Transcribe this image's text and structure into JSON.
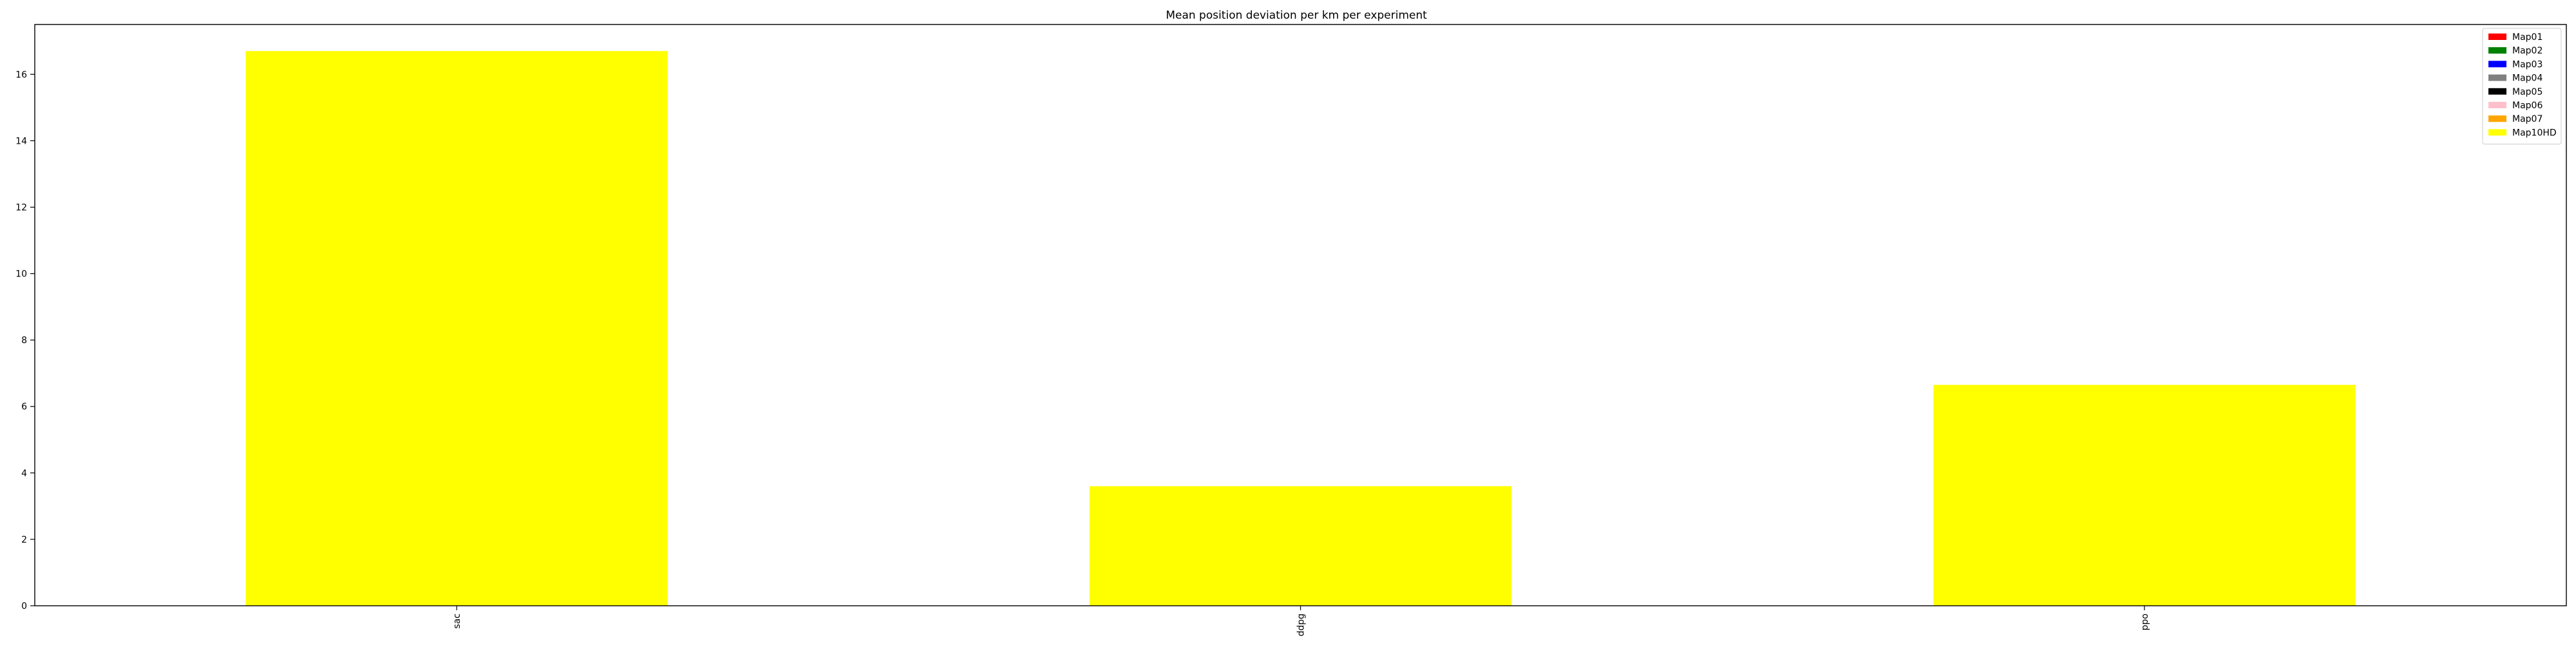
{
  "chart_data": {
    "type": "bar",
    "title": "Mean position deviation per km per experiment",
    "xlabel": "",
    "ylabel": "",
    "categories": [
      "sac",
      "ddpg",
      "ppo"
    ],
    "ylim": [
      0,
      17.5
    ],
    "yticks": [
      0,
      2,
      4,
      6,
      8,
      10,
      12,
      14,
      16
    ],
    "grid": false,
    "legend_position": "top-right",
    "series": [
      {
        "name": "Map01",
        "color": "#ff0000",
        "values": [
          0,
          0,
          0
        ]
      },
      {
        "name": "Map02",
        "color": "#008000",
        "values": [
          0,
          0,
          0
        ]
      },
      {
        "name": "Map03",
        "color": "#0000ff",
        "values": [
          0,
          0,
          0
        ]
      },
      {
        "name": "Map04",
        "color": "#808080",
        "values": [
          0,
          0,
          0
        ]
      },
      {
        "name": "Map05",
        "color": "#000000",
        "values": [
          0,
          0,
          0
        ]
      },
      {
        "name": "Map06",
        "color": "#ffc0cb",
        "values": [
          0,
          0,
          0
        ]
      },
      {
        "name": "Map07",
        "color": "#ffa500",
        "values": [
          0,
          0,
          0
        ]
      },
      {
        "name": "Map10HD",
        "color": "#ffff00",
        "values": [
          16.7,
          3.6,
          6.65
        ]
      }
    ]
  }
}
